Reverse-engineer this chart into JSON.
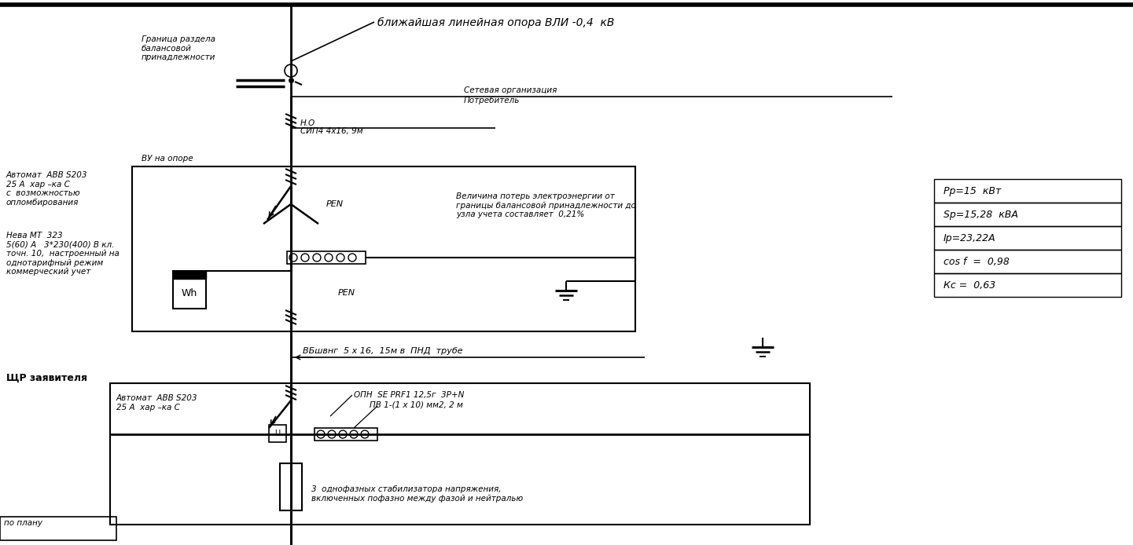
{
  "bg_color": "#ffffff",
  "line_color": "#000000",
  "text_color": "#000000",
  "title_top": "ближайшая линейная опора ВЛИ -0,4  кВ",
  "label_pole": "Граница раздела\nбалансовой\nпринадлежности",
  "label_vu": "ВУ на опоре",
  "label_net_org": "Сетевая организация",
  "label_consumer": "Потребитель",
  "label_h0": "Н.О",
  "label_sip": "СИП4 4х16, 9м",
  "label_pen1": "PEN",
  "label_pen2": "PEN",
  "label_wh": "Wh",
  "label_loss": "Величина потерь электроэнергии от\nграницы балансовой принадлежности до\nузла учета составляет  0,21%",
  "label_cable": "ВБшвнг  5 х 16,  15м в  ПНД  трубе",
  "label_avt1": "Автомат  АВВ S203\n25 А  хар –ка C\nс  возможностью\nопломбирования",
  "label_neva": "Нева МТ  323\n5(60) А   3*230(400) В кл.\nточн. 10,  настроенный на\nоднотарифный режим\nкоммерческий учет",
  "label_shr": "ЩР заявителя",
  "label_avt2": "Автомат  АВВ S203\n25 А  хар –ка C",
  "label_opn": "ОПН  SE PRF1 12,5г  3Р+N",
  "label_pv": "ПВ 1-(1 х 10) мм2, 2 м",
  "label_stab": "3  однофазных стабилизатора напряжения,\nвключенных пофазно между фазой и нейтралью",
  "label_po_planu": "по плану",
  "table_rows": [
    "Рр=15  кВт",
    "Sp=15,28  кВА",
    "Iр=23,22А",
    "cos f  =  0,98",
    "Кс =  0,63"
  ],
  "fig_width": 14.41,
  "fig_height": 6.94
}
